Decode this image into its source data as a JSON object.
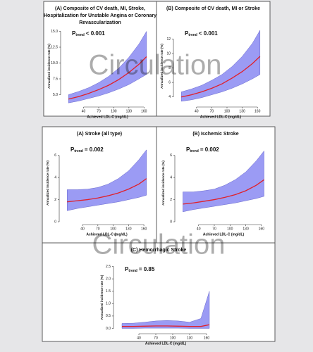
{
  "watermark": "Circulation",
  "chart_data": [
    {
      "type": "line",
      "title_lines": [
        "(A) Composite of CV death, MI, Stroke,",
        "Hospitalization for Unstable Angina or Coronary",
        "Revascularization"
      ],
      "p_label": "P",
      "p_sub": "trend",
      "p_value": "< 0.001",
      "xlabel": "Achieved LDL-C (mg/dL)",
      "ylabel": "Annualized incidence rate (%)",
      "x": [
        10,
        30,
        50,
        70,
        90,
        110,
        130,
        150,
        165
      ],
      "xlim": [
        0,
        175
      ],
      "xticks": [
        40,
        70,
        100,
        130,
        160
      ],
      "ylim": [
        3.5,
        15.5
      ],
      "yticks": [
        {
          "value": 5,
          "label": "5.0"
        },
        {
          "value": 7.5,
          "label": "7.5"
        },
        {
          "value": 10,
          "label": "10.0"
        },
        {
          "value": 12.5,
          "label": "12.5"
        },
        {
          "value": 15,
          "label": "15.0"
        }
      ],
      "series": [
        {
          "color": "#e0202a",
          "values": [
            4.3,
            4.7,
            5.2,
            5.8,
            6.5,
            7.4,
            8.5,
            9.8,
            11.0
          ]
        }
      ],
      "band": {
        "color": "#8a8af2",
        "lower": [
          3.7,
          4.0,
          4.4,
          4.8,
          5.3,
          5.9,
          6.6,
          7.5,
          8.2
        ],
        "upper": [
          5.0,
          5.5,
          6.1,
          6.9,
          7.9,
          9.2,
          10.9,
          13.0,
          15.0
        ]
      }
    },
    {
      "type": "line",
      "title_lines": [
        "(B) Composite of CV death, MI or Stroke"
      ],
      "p_label": "P",
      "p_sub": "trend",
      "p_value": "< 0.001",
      "xlabel": "Achieved LDL-C (mg/dL)",
      "ylabel": "Annualized incidence rate (%)",
      "x": [
        10,
        30,
        50,
        70,
        90,
        110,
        130,
        150,
        165
      ],
      "xlim": [
        0,
        175
      ],
      "xticks": [
        40,
        70,
        100,
        130,
        160
      ],
      "ylim": [
        3,
        13.5
      ],
      "yticks": [
        4,
        6,
        8,
        10,
        12
      ],
      "series": [
        {
          "color": "#e0202a",
          "values": [
            4.0,
            4.3,
            4.7,
            5.2,
            5.8,
            6.6,
            7.5,
            8.6,
            9.6
          ]
        }
      ],
      "band": {
        "color": "#8a8af2",
        "lower": [
          3.4,
          3.6,
          3.9,
          4.3,
          4.7,
          5.2,
          5.8,
          6.5,
          7.1
        ],
        "upper": [
          4.7,
          5.1,
          5.6,
          6.3,
          7.1,
          8.2,
          9.6,
          11.4,
          13.2
        ]
      }
    },
    {
      "type": "line",
      "title_lines": [
        "(A) Stroke (all type)"
      ],
      "p_label": "P",
      "p_sub": "trend",
      "p_value": "= 0.002",
      "xlabel": "Achieved LDL-C (mg/dL)",
      "ylabel": "Annualized incidence rate (%)",
      "x": [
        10,
        30,
        50,
        70,
        90,
        110,
        130,
        150,
        165
      ],
      "xlim": [
        0,
        175
      ],
      "xticks": [
        40,
        70,
        100,
        130,
        160
      ],
      "ylim": [
        0,
        7
      ],
      "yticks": [
        0,
        2,
        4,
        6
      ],
      "series": [
        {
          "color": "#e0202a",
          "values": [
            1.8,
            1.9,
            2.0,
            2.15,
            2.35,
            2.6,
            2.95,
            3.4,
            3.9
          ]
        }
      ],
      "band": {
        "color": "#8a8af2",
        "lower": [
          1.0,
          1.2,
          1.35,
          1.5,
          1.65,
          1.8,
          2.0,
          2.2,
          2.4
        ],
        "upper": [
          2.9,
          2.9,
          2.95,
          3.1,
          3.4,
          3.9,
          4.6,
          5.6,
          6.5
        ]
      }
    },
    {
      "type": "line",
      "title_lines": [
        "(B) Ischemic Stroke"
      ],
      "p_label": "P",
      "p_sub": "trend",
      "p_value": "= 0.002",
      "xlabel": "Achieved LDL-C (mg/dL)",
      "ylabel": "Annualized incidence rate (%)",
      "x": [
        10,
        30,
        50,
        70,
        90,
        110,
        130,
        150,
        165
      ],
      "xlim": [
        0,
        175
      ],
      "xticks": [
        40,
        70,
        100,
        130,
        160
      ],
      "ylim": [
        0,
        7
      ],
      "yticks": [
        0,
        2,
        4,
        6
      ],
      "series": [
        {
          "color": "#e0202a",
          "values": [
            1.6,
            1.7,
            1.85,
            2.0,
            2.2,
            2.45,
            2.8,
            3.3,
            3.8
          ]
        }
      ],
      "band": {
        "color": "#8a8af2",
        "lower": [
          0.9,
          1.1,
          1.25,
          1.4,
          1.55,
          1.7,
          1.9,
          2.1,
          2.3
        ],
        "upper": [
          2.7,
          2.7,
          2.8,
          2.95,
          3.3,
          3.8,
          4.5,
          5.5,
          6.4
        ]
      }
    },
    {
      "type": "line",
      "title_lines": [
        "(C) Hemorrhagic Stroke"
      ],
      "p_label": "P",
      "p_sub": "trend",
      "p_value": "= 0.85",
      "xlabel": "Achieved LDL-C (mg/dL)",
      "ylabel": "Annualized incidence rate (%)",
      "x": [
        10,
        30,
        50,
        70,
        90,
        110,
        130,
        150,
        165
      ],
      "xlim": [
        0,
        175
      ],
      "xticks": [
        40,
        70,
        100,
        130,
        160
      ],
      "ylim": [
        -0.1,
        2.6
      ],
      "yticks": [
        {
          "value": 0,
          "label": "0.0"
        },
        {
          "value": 0.5,
          "label": "0.5"
        },
        {
          "value": 1,
          "label": "1.0"
        },
        {
          "value": 1.5,
          "label": "1.5"
        },
        {
          "value": 2,
          "label": "2.0"
        },
        {
          "value": 2.5,
          "label": "2.5"
        }
      ],
      "series": [
        {
          "color": "#e0202a",
          "values": [
            0.08,
            0.08,
            0.09,
            0.1,
            0.1,
            0.09,
            0.08,
            0.08,
            0.15
          ]
        }
      ],
      "band": {
        "color": "#8a8af2",
        "lower": [
          0.0,
          0.0,
          0.01,
          0.01,
          0.01,
          0.01,
          0.0,
          0.0,
          0.0
        ],
        "upper": [
          0.2,
          0.21,
          0.25,
          0.3,
          0.32,
          0.3,
          0.25,
          0.4,
          1.5
        ]
      }
    }
  ]
}
